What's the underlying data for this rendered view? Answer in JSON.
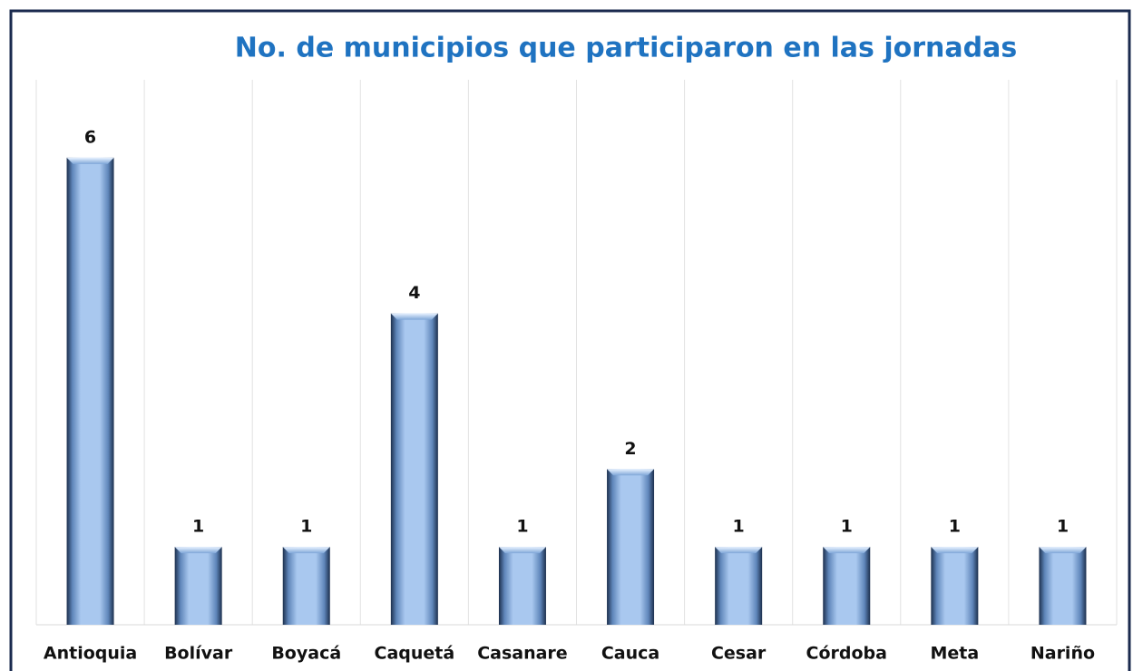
{
  "chart_data": {
    "type": "bar",
    "title": "No. de municipios que participaron en las jornadas",
    "categories": [
      "Antioquia",
      "Bolívar",
      "Boyacá",
      "Caquetá",
      "Casanare",
      "Cauca",
      "Cesar",
      "Córdoba",
      "Meta",
      "Nariño"
    ],
    "values": [
      6,
      1,
      1,
      4,
      1,
      2,
      1,
      1,
      1,
      1
    ],
    "color": "#a9c8ef",
    "ylim": [
      0,
      7
    ]
  }
}
